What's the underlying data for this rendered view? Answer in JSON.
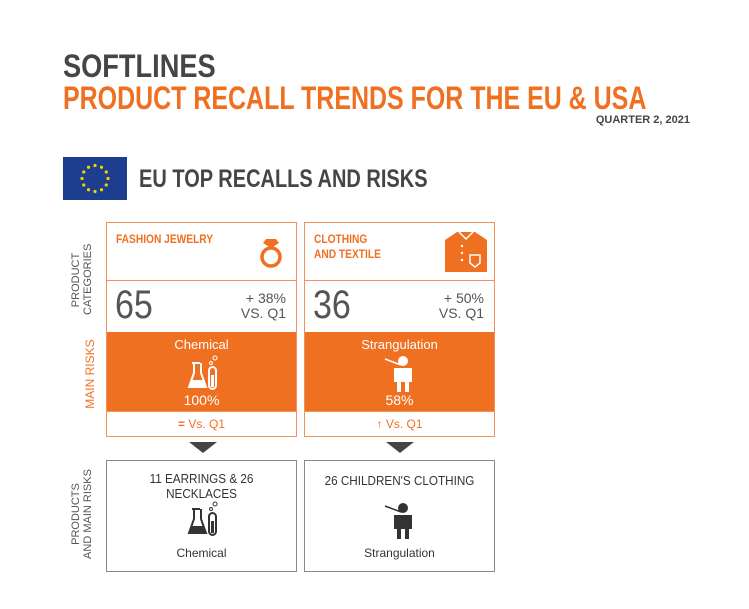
{
  "header": {
    "title": "SOFTLINES",
    "subtitle": "PRODUCT RECALL TRENDS FOR THE EU & USA",
    "period": "QUARTER 2, 2021"
  },
  "section": {
    "title": "EU TOP RECALLS AND RISKS",
    "flag": "eu-flag"
  },
  "row_labels": {
    "categories_1": "PRODUCT",
    "categories_2": "CATEGORIES",
    "risks": "MAIN RISKS",
    "products_1": "PRODUCTS",
    "products_2": "AND MAIN RISKS"
  },
  "colors": {
    "accent": "#f07022",
    "text": "#454545"
  },
  "cards": [
    {
      "category_1": "FASHION JEWELRY",
      "category_2": "",
      "icon": "ring-icon",
      "count": "65",
      "change": "+ 38%",
      "change_vs": "VS. Q1",
      "risk": "Chemical",
      "risk_icon": "chemical-flask-icon",
      "risk_pct": "100%",
      "trend_icon": "equals-icon",
      "trend_symbol": "=",
      "trend_label": "Vs. Q1",
      "products": "11 EARRINGS & 26 NECKLACES",
      "product_risk": "Chemical"
    },
    {
      "category_1": "CLOTHING",
      "category_2": "AND TEXTILE",
      "icon": "shirt-icon",
      "count": "36",
      "change": "+ 50%",
      "change_vs": "VS. Q1",
      "risk": "Strangulation",
      "risk_icon": "strangulation-icon",
      "risk_pct": "58%",
      "trend_icon": "arrow-up-icon",
      "trend_symbol": "↑",
      "trend_label": "Vs. Q1",
      "products": "26 CHILDREN'S CLOTHING",
      "product_risk": "Strangulation"
    }
  ]
}
